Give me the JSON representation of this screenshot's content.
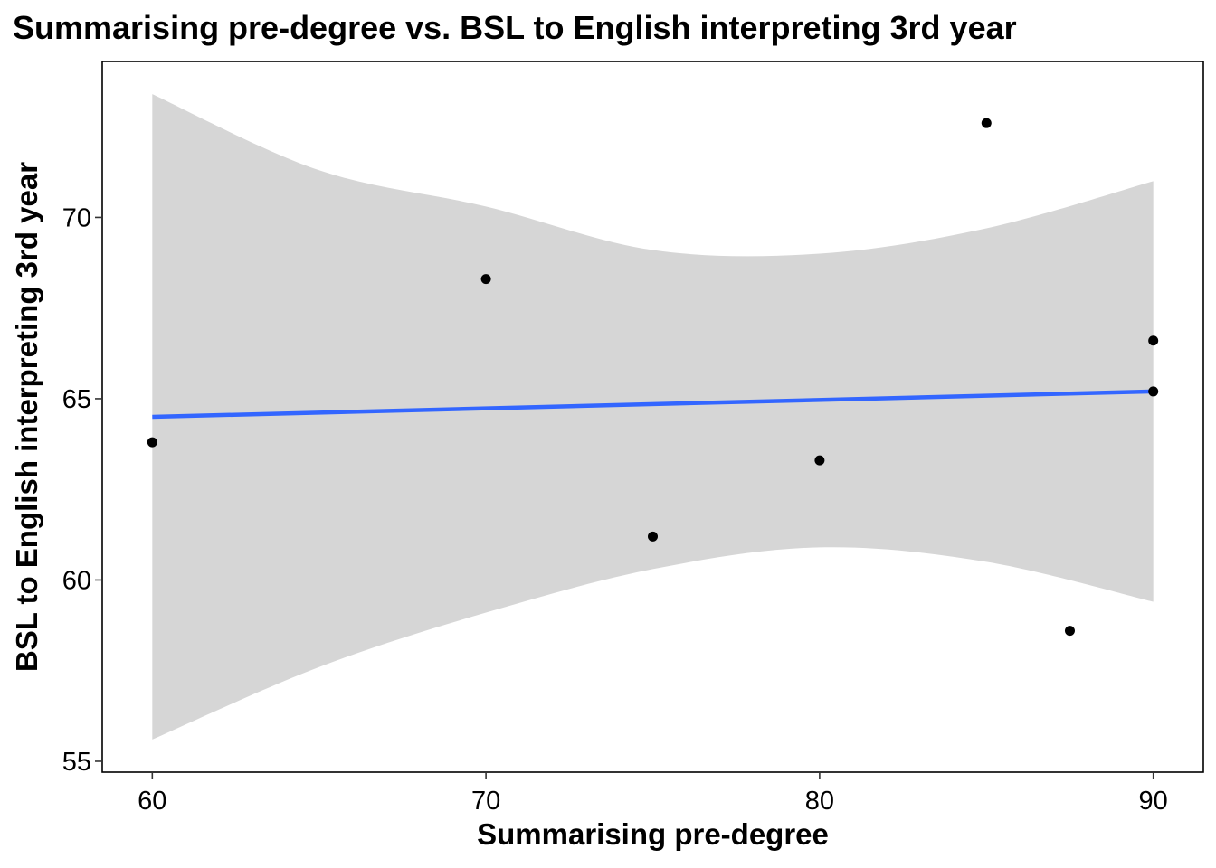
{
  "chart_data": {
    "type": "scatter",
    "title": "Summarising pre-degree vs. BSL to English interpreting 3rd year",
    "xlabel": "Summarising pre-degree",
    "ylabel": "BSL to English interpreting 3rd year",
    "xlim": [
      58.5,
      91.5
    ],
    "ylim": [
      54.7,
      74.3
    ],
    "xticks": [
      60,
      70,
      80,
      90
    ],
    "yticks": [
      55,
      60,
      65,
      70
    ],
    "grid": false,
    "points": [
      {
        "x": 60,
        "y": 63.8
      },
      {
        "x": 70,
        "y": 68.3
      },
      {
        "x": 75,
        "y": 61.2
      },
      {
        "x": 80,
        "y": 63.3
      },
      {
        "x": 85,
        "y": 72.6
      },
      {
        "x": 87.5,
        "y": 58.6
      },
      {
        "x": 90,
        "y": 66.6
      },
      {
        "x": 90,
        "y": 65.2
      }
    ],
    "fit_line": {
      "x": [
        60,
        90
      ],
      "y": [
        64.5,
        65.2
      ],
      "color": "#3366FF"
    },
    "confidence_band": {
      "x": [
        60,
        65,
        70,
        75,
        80,
        85,
        90
      ],
      "upper": [
        73.4,
        71.3,
        70.3,
        69.1,
        69.0,
        69.7,
        71.0
      ],
      "lower": [
        55.6,
        57.6,
        59.1,
        60.3,
        60.9,
        60.5,
        59.4
      ],
      "color": "#d6d6d6"
    },
    "point_color": "#000000"
  }
}
